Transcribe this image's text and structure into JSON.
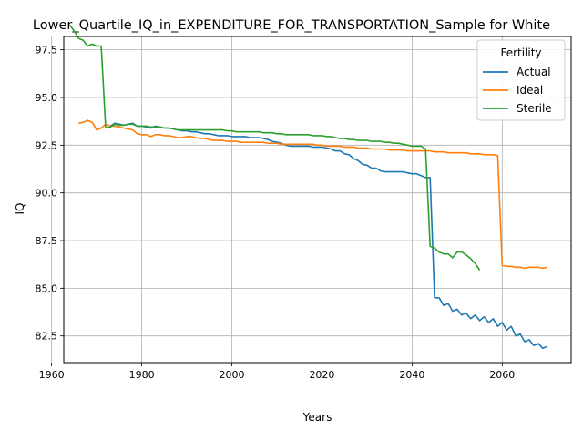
{
  "chart_data": {
    "type": "line",
    "title": "Lower_Quartile_IQ_in_EXPENDITURE_FOR_TRANSPORTATION_Sample for White",
    "xlabel": "Years",
    "ylabel": "IQ",
    "xlim": [
      1962.7,
      2075.3
    ],
    "ylim": [
      81.1,
      98.2
    ],
    "x_ticks": [
      1960,
      1980,
      2000,
      2020,
      2040,
      2060
    ],
    "y_ticks": [
      82.5,
      85.0,
      87.5,
      90.0,
      92.5,
      95.0,
      97.5
    ],
    "x_tick_labels": [
      "1960",
      "1980",
      "2000",
      "2020",
      "2040",
      "2060"
    ],
    "y_tick_labels": [
      "82.5",
      "85.0",
      "87.5",
      "90.0",
      "92.5",
      "95.0",
      "97.5"
    ],
    "grid": true,
    "legend": {
      "title": "Fertility",
      "placement": "upper-right"
    },
    "series": [
      {
        "name": "Actual",
        "color": "#1f77b4",
        "points": [
          [
            1973,
            93.5
          ],
          [
            1974,
            93.65
          ],
          [
            1975,
            93.6
          ],
          [
            1976,
            93.55
          ],
          [
            1977,
            93.6
          ],
          [
            1978,
            93.65
          ],
          [
            1979,
            93.5
          ],
          [
            1980,
            93.5
          ],
          [
            1981,
            93.45
          ],
          [
            1982,
            93.4
          ],
          [
            1983,
            93.5
          ],
          [
            1984,
            93.45
          ],
          [
            1985,
            93.4
          ],
          [
            1986,
            93.4
          ],
          [
            1987,
            93.35
          ],
          [
            1988,
            93.3
          ],
          [
            1989,
            93.25
          ],
          [
            1990,
            93.25
          ],
          [
            1991,
            93.2
          ],
          [
            1992,
            93.2
          ],
          [
            1993,
            93.15
          ],
          [
            1994,
            93.1
          ],
          [
            1995,
            93.1
          ],
          [
            1996,
            93.05
          ],
          [
            1997,
            93.0
          ],
          [
            1998,
            93.0
          ],
          [
            1999,
            93.0
          ],
          [
            2000,
            92.95
          ],
          [
            2001,
            92.95
          ],
          [
            2002,
            92.95
          ],
          [
            2003,
            92.95
          ],
          [
            2004,
            92.9
          ],
          [
            2005,
            92.9
          ],
          [
            2006,
            92.9
          ],
          [
            2007,
            92.85
          ],
          [
            2008,
            92.8
          ],
          [
            2009,
            92.7
          ],
          [
            2010,
            92.65
          ],
          [
            2011,
            92.6
          ],
          [
            2012,
            92.5
          ],
          [
            2013,
            92.45
          ],
          [
            2014,
            92.45
          ],
          [
            2015,
            92.45
          ],
          [
            2016,
            92.45
          ],
          [
            2017,
            92.45
          ],
          [
            2018,
            92.4
          ],
          [
            2019,
            92.4
          ],
          [
            2020,
            92.4
          ],
          [
            2021,
            92.35
          ],
          [
            2022,
            92.3
          ],
          [
            2023,
            92.2
          ],
          [
            2024,
            92.2
          ],
          [
            2025,
            92.05
          ],
          [
            2026,
            92.0
          ],
          [
            2027,
            91.8
          ],
          [
            2028,
            91.7
          ],
          [
            2029,
            91.5
          ],
          [
            2030,
            91.45
          ],
          [
            2031,
            91.3
          ],
          [
            2032,
            91.3
          ],
          [
            2033,
            91.15
          ],
          [
            2034,
            91.1
          ],
          [
            2035,
            91.1
          ],
          [
            2036,
            91.1
          ],
          [
            2037,
            91.1
          ],
          [
            2038,
            91.1
          ],
          [
            2039,
            91.05
          ],
          [
            2040,
            91.0
          ],
          [
            2041,
            91.0
          ],
          [
            2042,
            90.9
          ],
          [
            2043,
            90.8
          ],
          [
            2044,
            90.8
          ],
          [
            2045,
            84.5
          ],
          [
            2046,
            84.5
          ],
          [
            2047,
            84.1
          ],
          [
            2048,
            84.2
          ],
          [
            2049,
            83.8
          ],
          [
            2050,
            83.9
          ],
          [
            2051,
            83.6
          ],
          [
            2052,
            83.7
          ],
          [
            2053,
            83.4
          ],
          [
            2054,
            83.6
          ],
          [
            2055,
            83.3
          ],
          [
            2056,
            83.5
          ],
          [
            2057,
            83.2
          ],
          [
            2058,
            83.4
          ],
          [
            2059,
            83.0
          ],
          [
            2060,
            83.2
          ],
          [
            2061,
            82.8
          ],
          [
            2062,
            83.0
          ],
          [
            2063,
            82.5
          ],
          [
            2064,
            82.6
          ],
          [
            2065,
            82.2
          ],
          [
            2066,
            82.3
          ],
          [
            2067,
            82.0
          ],
          [
            2068,
            82.1
          ],
          [
            2069,
            81.85
          ],
          [
            2070,
            81.95
          ]
        ]
      },
      {
        "name": "Ideal",
        "color": "#ff7f0e",
        "points": [
          [
            1966,
            93.65
          ],
          [
            1967,
            93.7
          ],
          [
            1968,
            93.8
          ],
          [
            1969,
            93.7
          ],
          [
            1970,
            93.3
          ],
          [
            1971,
            93.4
          ],
          [
            1972,
            93.6
          ],
          [
            1973,
            93.5
          ],
          [
            1974,
            93.5
          ],
          [
            1975,
            93.45
          ],
          [
            1976,
            93.4
          ],
          [
            1977,
            93.35
          ],
          [
            1978,
            93.3
          ],
          [
            1979,
            93.1
          ],
          [
            1980,
            93.05
          ],
          [
            1981,
            93.05
          ],
          [
            1982,
            92.95
          ],
          [
            1983,
            93.05
          ],
          [
            1984,
            93.05
          ],
          [
            1985,
            93.0
          ],
          [
            1986,
            93.0
          ],
          [
            1987,
            92.95
          ],
          [
            1988,
            92.9
          ],
          [
            1989,
            92.9
          ],
          [
            1990,
            92.95
          ],
          [
            1991,
            92.95
          ],
          [
            1992,
            92.9
          ],
          [
            1993,
            92.85
          ],
          [
            1994,
            92.85
          ],
          [
            1995,
            92.8
          ],
          [
            1996,
            92.75
          ],
          [
            1997,
            92.75
          ],
          [
            1998,
            92.75
          ],
          [
            1999,
            92.7
          ],
          [
            2000,
            92.7
          ],
          [
            2001,
            92.7
          ],
          [
            2002,
            92.65
          ],
          [
            2003,
            92.65
          ],
          [
            2004,
            92.65
          ],
          [
            2005,
            92.65
          ],
          [
            2006,
            92.65
          ],
          [
            2007,
            92.65
          ],
          [
            2008,
            92.6
          ],
          [
            2009,
            92.6
          ],
          [
            2010,
            92.6
          ],
          [
            2011,
            92.55
          ],
          [
            2012,
            92.55
          ],
          [
            2013,
            92.55
          ],
          [
            2014,
            92.55
          ],
          [
            2015,
            92.55
          ],
          [
            2016,
            92.55
          ],
          [
            2017,
            92.55
          ],
          [
            2018,
            92.55
          ],
          [
            2019,
            92.5
          ],
          [
            2020,
            92.5
          ],
          [
            2021,
            92.45
          ],
          [
            2022,
            92.45
          ],
          [
            2023,
            92.45
          ],
          [
            2024,
            92.45
          ],
          [
            2025,
            92.4
          ],
          [
            2026,
            92.4
          ],
          [
            2027,
            92.4
          ],
          [
            2028,
            92.35
          ],
          [
            2029,
            92.35
          ],
          [
            2030,
            92.35
          ],
          [
            2031,
            92.3
          ],
          [
            2032,
            92.3
          ],
          [
            2033,
            92.3
          ],
          [
            2034,
            92.3
          ],
          [
            2035,
            92.25
          ],
          [
            2036,
            92.25
          ],
          [
            2037,
            92.25
          ],
          [
            2038,
            92.25
          ],
          [
            2039,
            92.2
          ],
          [
            2040,
            92.2
          ],
          [
            2041,
            92.2
          ],
          [
            2042,
            92.2
          ],
          [
            2043,
            92.2
          ],
          [
            2044,
            92.2
          ],
          [
            2045,
            92.15
          ],
          [
            2046,
            92.15
          ],
          [
            2047,
            92.15
          ],
          [
            2048,
            92.1
          ],
          [
            2049,
            92.1
          ],
          [
            2050,
            92.1
          ],
          [
            2051,
            92.1
          ],
          [
            2052,
            92.1
          ],
          [
            2053,
            92.05
          ],
          [
            2054,
            92.05
          ],
          [
            2055,
            92.05
          ],
          [
            2056,
            92.0
          ],
          [
            2057,
            92.0
          ],
          [
            2058,
            92.0
          ],
          [
            2059,
            91.95
          ],
          [
            2060,
            86.2
          ],
          [
            2061,
            86.15
          ],
          [
            2062,
            86.15
          ],
          [
            2063,
            86.1
          ],
          [
            2064,
            86.1
          ],
          [
            2065,
            86.05
          ],
          [
            2066,
            86.1
          ],
          [
            2067,
            86.1
          ],
          [
            2068,
            86.1
          ],
          [
            2069,
            86.05
          ],
          [
            2070,
            86.1
          ]
        ]
      },
      {
        "name": "Sterile",
        "color": "#2ca02c",
        "points": [
          [
            1964,
            98.8
          ],
          [
            1965,
            98.5
          ],
          [
            1966,
            98.1
          ],
          [
            1967,
            98.0
          ],
          [
            1968,
            97.7
          ],
          [
            1969,
            97.8
          ],
          [
            1970,
            97.7
          ],
          [
            1971,
            97.7
          ],
          [
            1972,
            93.4
          ],
          [
            1973,
            93.45
          ],
          [
            1974,
            93.6
          ],
          [
            1975,
            93.55
          ],
          [
            1976,
            93.55
          ],
          [
            1977,
            93.6
          ],
          [
            1978,
            93.6
          ],
          [
            1979,
            93.5
          ],
          [
            1980,
            93.5
          ],
          [
            1981,
            93.5
          ],
          [
            1982,
            93.45
          ],
          [
            1983,
            93.45
          ],
          [
            1984,
            93.45
          ],
          [
            1985,
            93.4
          ],
          [
            1986,
            93.4
          ],
          [
            1987,
            93.35
          ],
          [
            1988,
            93.3
          ],
          [
            1989,
            93.3
          ],
          [
            1990,
            93.3
          ],
          [
            1991,
            93.3
          ],
          [
            1992,
            93.3
          ],
          [
            1993,
            93.3
          ],
          [
            1994,
            93.3
          ],
          [
            1995,
            93.3
          ],
          [
            1996,
            93.3
          ],
          [
            1997,
            93.3
          ],
          [
            1998,
            93.3
          ],
          [
            1999,
            93.25
          ],
          [
            2000,
            93.25
          ],
          [
            2001,
            93.2
          ],
          [
            2002,
            93.2
          ],
          [
            2003,
            93.2
          ],
          [
            2004,
            93.2
          ],
          [
            2005,
            93.2
          ],
          [
            2006,
            93.2
          ],
          [
            2007,
            93.15
          ],
          [
            2008,
            93.15
          ],
          [
            2009,
            93.15
          ],
          [
            2010,
            93.1
          ],
          [
            2011,
            93.1
          ],
          [
            2012,
            93.05
          ],
          [
            2013,
            93.05
          ],
          [
            2014,
            93.05
          ],
          [
            2015,
            93.05
          ],
          [
            2016,
            93.05
          ],
          [
            2017,
            93.05
          ],
          [
            2018,
            93.0
          ],
          [
            2019,
            93.0
          ],
          [
            2020,
            93.0
          ],
          [
            2021,
            92.95
          ],
          [
            2022,
            92.95
          ],
          [
            2023,
            92.9
          ],
          [
            2024,
            92.85
          ],
          [
            2025,
            92.85
          ],
          [
            2026,
            92.8
          ],
          [
            2027,
            92.8
          ],
          [
            2028,
            92.75
          ],
          [
            2029,
            92.75
          ],
          [
            2030,
            92.75
          ],
          [
            2031,
            92.7
          ],
          [
            2032,
            92.7
          ],
          [
            2033,
            92.7
          ],
          [
            2034,
            92.65
          ],
          [
            2035,
            92.65
          ],
          [
            2036,
            92.6
          ],
          [
            2037,
            92.6
          ],
          [
            2038,
            92.55
          ],
          [
            2039,
            92.5
          ],
          [
            2040,
            92.45
          ],
          [
            2041,
            92.45
          ],
          [
            2042,
            92.45
          ],
          [
            2043,
            92.3
          ],
          [
            2044,
            87.2
          ],
          [
            2045,
            87.1
          ],
          [
            2046,
            86.9
          ],
          [
            2047,
            86.8
          ],
          [
            2048,
            86.8
          ],
          [
            2049,
            86.6
          ],
          [
            2050,
            86.9
          ],
          [
            2051,
            86.9
          ],
          [
            2052,
            86.75
          ],
          [
            2053,
            86.55
          ],
          [
            2054,
            86.3
          ],
          [
            2055,
            85.95
          ]
        ]
      }
    ]
  }
}
